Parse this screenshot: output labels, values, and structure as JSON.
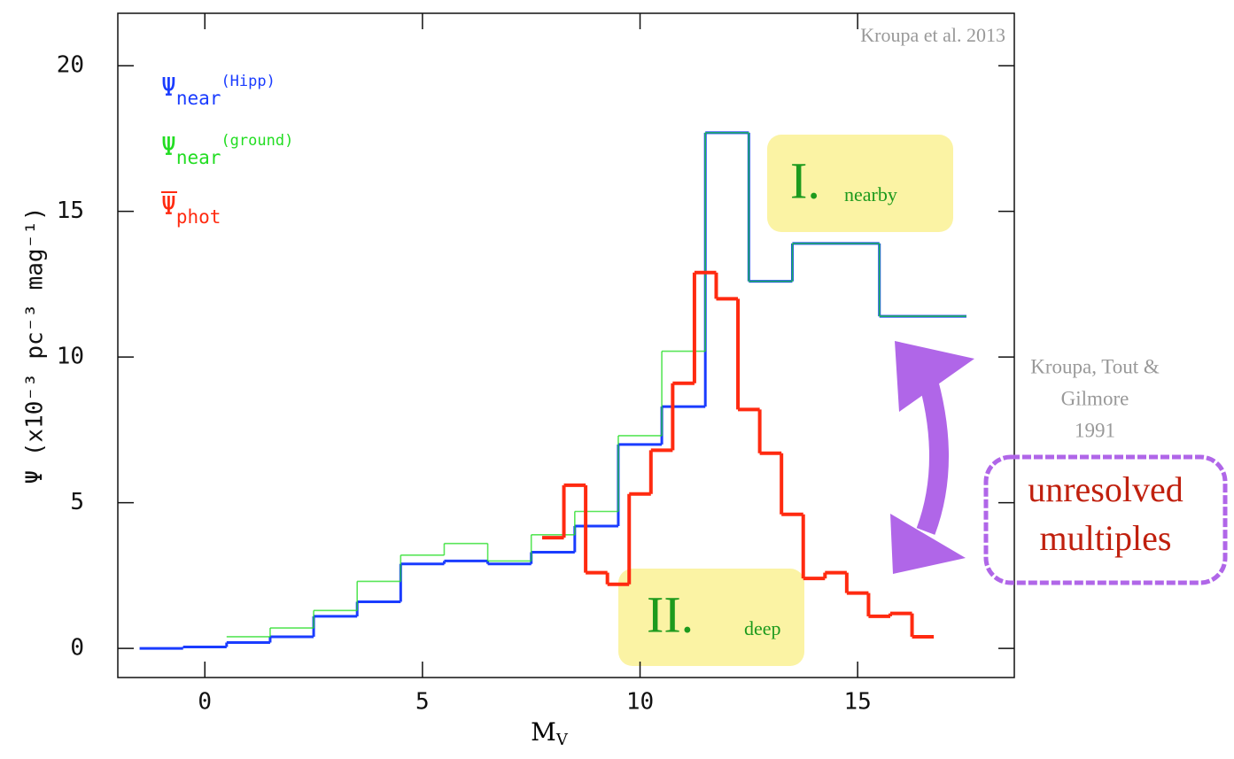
{
  "chart_data": {
    "type": "step",
    "x_label": "M",
    "x_label_sub": "V",
    "y_label": "Ψ  (x10⁻³  pc⁻³  mag⁻¹)",
    "xlim": [
      -2,
      18.6
    ],
    "ylim": [
      -1,
      21.8
    ],
    "xticks": [
      0,
      5,
      10,
      15
    ],
    "yticks": [
      0,
      5,
      10,
      15,
      20
    ],
    "series": [
      {
        "name": "Ψ",
        "sub": "near",
        "sup": "(Hipp)",
        "color": "#1a3cff",
        "width": 3,
        "bins": [
          -1.5,
          -0.5,
          0.5,
          1.5,
          2.5,
          3.5,
          4.5,
          5.5,
          6.5,
          7.5,
          8.5,
          9.5,
          10.5,
          11.5,
          12.5,
          13.5,
          15.5,
          17.5
        ],
        "values": [
          0,
          0.05,
          0.2,
          0.4,
          1.1,
          1.6,
          2.9,
          3.0,
          2.9,
          3.3,
          4.2,
          7.0,
          8.3,
          17.7,
          12.6,
          13.9,
          11.4
        ]
      },
      {
        "name": "Ψ",
        "sub": "near",
        "sup": "(ground)",
        "color": "#22dd22",
        "width": 1.6,
        "bins": [
          0.5,
          1.5,
          2.5,
          3.5,
          4.5,
          5.5,
          6.5,
          7.5,
          8.5,
          9.5,
          10.5,
          11.5,
          12.5,
          13.5,
          15.5,
          17.5
        ],
        "values": [
          0.4,
          0.7,
          1.3,
          2.3,
          3.2,
          3.6,
          3.0,
          3.9,
          4.7,
          7.3,
          10.2,
          17.7,
          12.6,
          13.9,
          11.4
        ]
      },
      {
        "name": "Ψ",
        "sub": "phot",
        "color": "#ff2a10",
        "width": 4,
        "bins": [
          7.75,
          8.25,
          8.75,
          9.25,
          9.75,
          10.25,
          10.75,
          11.25,
          11.75,
          12.25,
          12.75,
          13.25,
          13.75,
          14.25,
          14.75,
          15.25,
          15.75,
          16.25,
          16.75
        ],
        "values": [
          3.8,
          5.6,
          2.6,
          2.2,
          5.3,
          6.8,
          9.1,
          12.9,
          12.0,
          8.2,
          6.7,
          4.6,
          2.4,
          2.6,
          1.9,
          1.1,
          1.2,
          0.4
        ]
      }
    ],
    "annotations": {
      "credit": "Kroupa et al.   2013",
      "nearby_num": "I.",
      "nearby": "nearby",
      "deep_num": "II.",
      "deep": "deep",
      "ref": [
        "Kroupa, Tout &",
        "Gilmore",
        "1991"
      ],
      "multiples": [
        "unresolved",
        "multiples"
      ]
    }
  }
}
